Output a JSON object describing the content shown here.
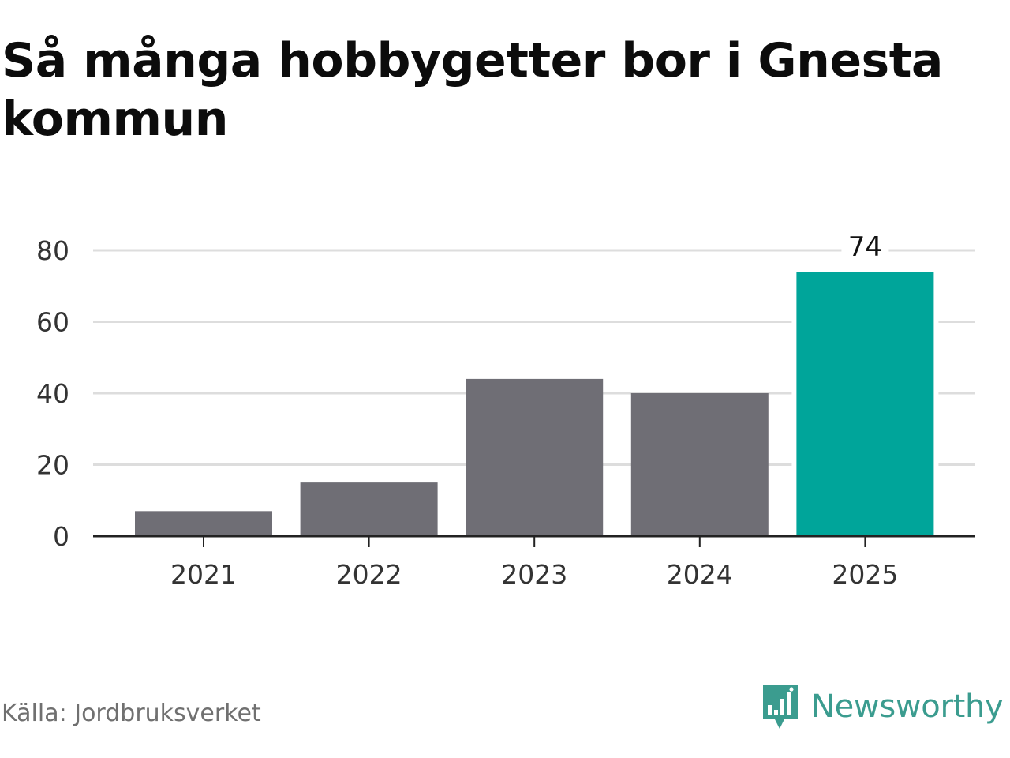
{
  "title": "Så många hobbygetter bor i Gnesta kommun",
  "source": "Källa: Jordbruksverket",
  "brand": {
    "name": "Newsworthy",
    "icon": "newsworthy-logo-icon",
    "color": "#3b9c8f"
  },
  "colors": {
    "bar": "#6f6e75",
    "highlight": "#00a59a",
    "grid": "#dddddd",
    "axis": "#222222"
  },
  "chart_data": {
    "type": "bar",
    "categories": [
      "2021",
      "2022",
      "2023",
      "2024",
      "2025"
    ],
    "values": [
      7,
      15,
      44,
      40,
      74
    ],
    "highlight_index": 4,
    "data_labels": [
      {
        "index": 4,
        "text": "74"
      }
    ],
    "yticks": [
      0,
      20,
      40,
      60,
      80
    ],
    "ytick_labels": [
      "0",
      "20",
      "40",
      "60",
      "80"
    ],
    "ylim": [
      0,
      80
    ],
    "grid": true,
    "legend": "none",
    "xlabel": "",
    "ylabel": ""
  }
}
